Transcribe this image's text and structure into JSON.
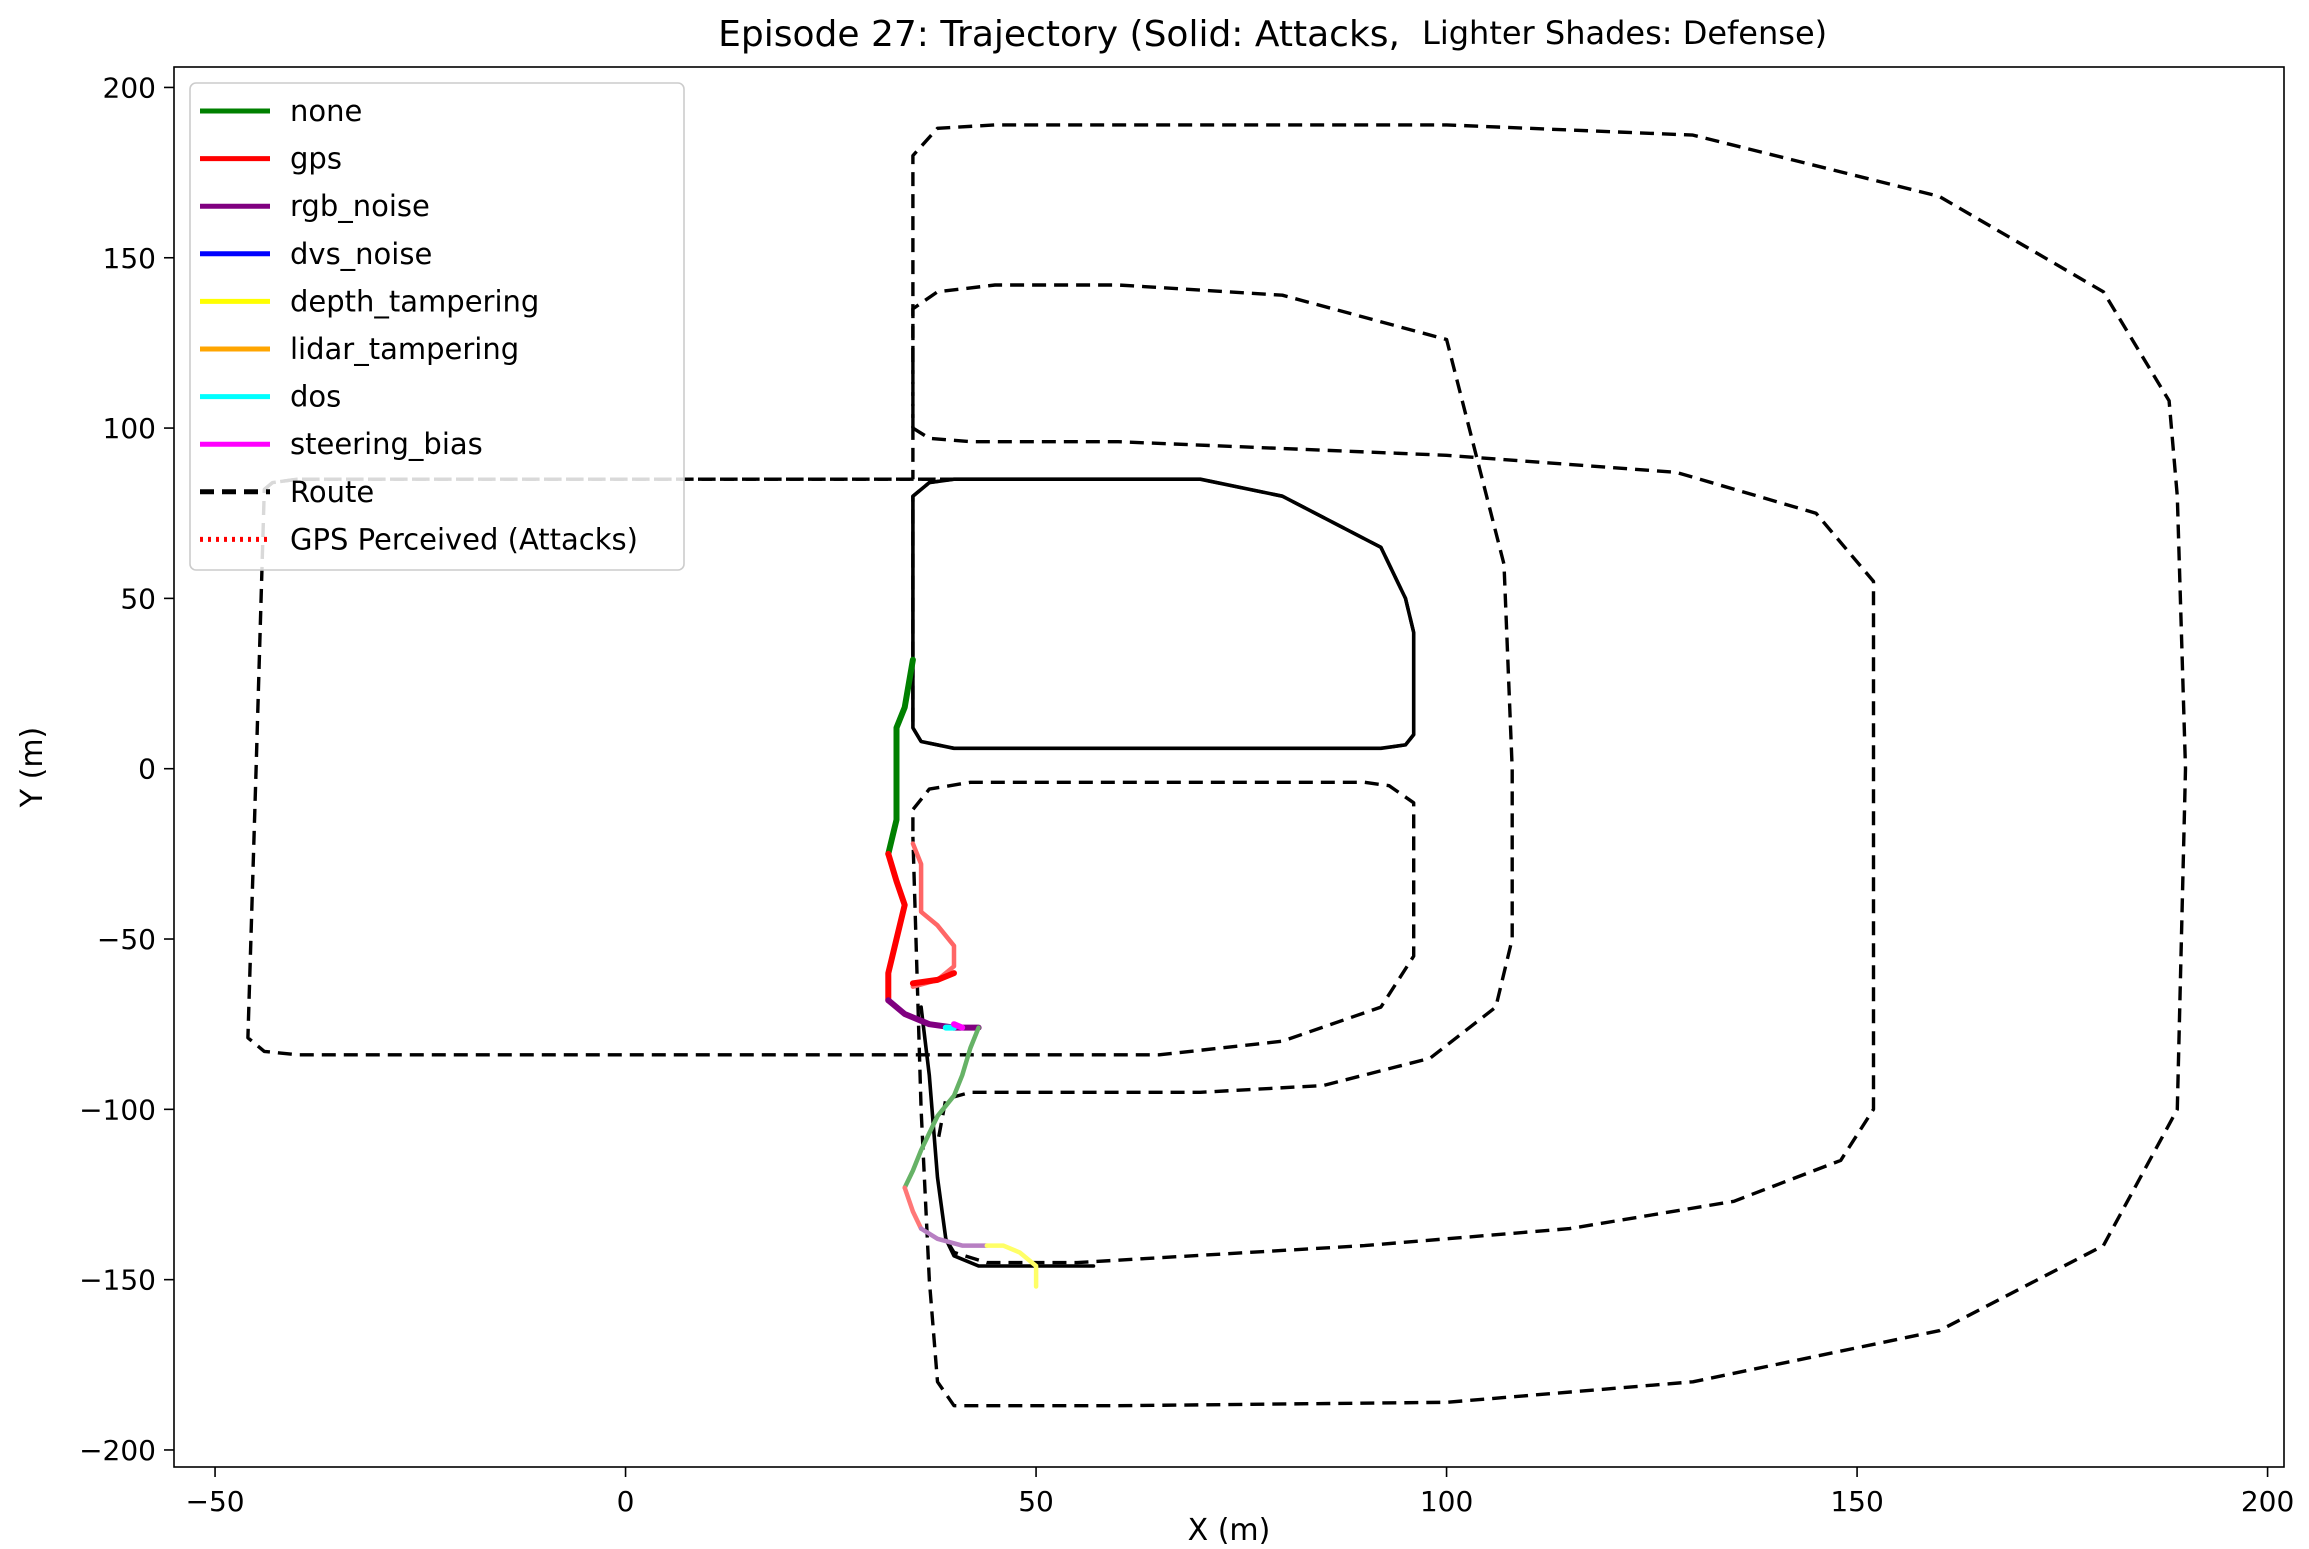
{
  "chart_data": {
    "type": "line",
    "title": "Episode 27: Trajectory (Solid: Attacks,",
    "title_suffix": "Lighter Shades: Defense)",
    "xlabel": "X (m)",
    "ylabel": "Y (m)",
    "xlim": [
      -55,
      202
    ],
    "ylim": [
      -205,
      206
    ],
    "xticks": [
      -50,
      0,
      50,
      100,
      150,
      200
    ],
    "yticks": [
      -200,
      -150,
      -100,
      -50,
      0,
      50,
      100,
      150,
      200
    ],
    "xtick_labels": [
      "−50",
      "0",
      "50",
      "100",
      "150",
      "200"
    ],
    "ytick_labels": [
      "−200",
      "−150",
      "−100",
      "−50",
      "0",
      "50",
      "100",
      "150",
      "200"
    ],
    "grid": false,
    "legend_position": "top-left",
    "legend": [
      {
        "label": "none",
        "color": "#008000",
        "style": "solid"
      },
      {
        "label": "gps",
        "color": "#ff0000",
        "style": "solid"
      },
      {
        "label": "rgb_noise",
        "color": "#800080",
        "style": "solid"
      },
      {
        "label": "dvs_noise",
        "color": "#0000ff",
        "style": "solid"
      },
      {
        "label": "depth_tampering",
        "color": "#ffff00",
        "style": "solid"
      },
      {
        "label": "lidar_tampering",
        "color": "#ffa500",
        "style": "solid"
      },
      {
        "label": "dos",
        "color": "#00ffff",
        "style": "solid"
      },
      {
        "label": "steering_bias",
        "color": "#ff00ff",
        "style": "solid"
      },
      {
        "label": "Route",
        "color": "#000000",
        "style": "dashed"
      },
      {
        "label": "GPS Perceived (Attacks)",
        "color": "#ff0000",
        "style": "dotted"
      }
    ],
    "routes": [
      {
        "name": "route-1",
        "style": "dashed",
        "points": [
          [
            -44,
            82
          ],
          [
            -43,
            84
          ],
          [
            -40,
            85
          ],
          [
            20,
            85
          ],
          [
            35,
            85
          ],
          [
            70,
            85
          ],
          [
            80,
            80
          ],
          [
            92,
            65
          ],
          [
            95,
            50
          ],
          [
            96,
            40
          ],
          [
            96,
            10
          ],
          [
            95,
            7
          ],
          [
            92,
            6
          ],
          [
            75,
            6
          ],
          [
            40,
            6
          ],
          [
            36,
            8
          ],
          [
            35,
            12
          ],
          [
            35,
            80
          ],
          [
            37,
            84
          ],
          [
            40,
            85
          ]
        ]
      },
      {
        "name": "route-2",
        "style": "dashed",
        "points": [
          [
            40,
            85
          ],
          [
            35,
            85
          ],
          [
            -40,
            85
          ],
          [
            -43,
            84
          ],
          [
            -44,
            82
          ],
          [
            -45,
            0
          ],
          [
            -46,
            -79
          ],
          [
            -44,
            -83
          ],
          [
            -40,
            -84
          ],
          [
            50,
            -84
          ],
          [
            65,
            -84
          ],
          [
            80,
            -80
          ],
          [
            92,
            -70
          ],
          [
            96,
            -55
          ],
          [
            96,
            -10
          ],
          [
            93,
            -5
          ],
          [
            90,
            -4
          ],
          [
            42,
            -4
          ],
          [
            37,
            -6
          ],
          [
            35,
            -12
          ],
          [
            35,
            -20
          ]
        ]
      },
      {
        "name": "route-3",
        "style": "dashed",
        "points": [
          [
            35,
            100
          ],
          [
            35,
            180
          ],
          [
            38,
            188
          ],
          [
            45,
            189
          ],
          [
            100,
            189
          ],
          [
            130,
            186
          ],
          [
            160,
            168
          ],
          [
            180,
            140
          ],
          [
            188,
            108
          ],
          [
            189,
            80
          ],
          [
            190,
            0
          ],
          [
            189,
            -100
          ],
          [
            180,
            -140
          ],
          [
            160,
            -165
          ],
          [
            130,
            -180
          ],
          [
            100,
            -186
          ],
          [
            60,
            -187
          ],
          [
            40,
            -187
          ],
          [
            38,
            -180
          ],
          [
            37,
            -150
          ],
          [
            36,
            -100
          ],
          [
            35,
            -20
          ]
        ]
      },
      {
        "name": "route-4",
        "style": "dashed",
        "points": [
          [
            35,
            100
          ],
          [
            37,
            97
          ],
          [
            42,
            96
          ],
          [
            60,
            96
          ],
          [
            100,
            92
          ],
          [
            128,
            87
          ],
          [
            145,
            75
          ],
          [
            152,
            55
          ],
          [
            152,
            0
          ],
          [
            152,
            -100
          ],
          [
            148,
            -115
          ],
          [
            135,
            -127
          ],
          [
            115,
            -135
          ],
          [
            90,
            -140
          ],
          [
            55,
            -145
          ],
          [
            44,
            -145
          ],
          [
            40,
            -142
          ],
          [
            39,
            -138
          ]
        ]
      },
      {
        "name": "route-5",
        "style": "dashed",
        "points": [
          [
            35,
            120
          ],
          [
            35,
            135
          ],
          [
            38,
            140
          ],
          [
            45,
            142
          ],
          [
            60,
            142
          ],
          [
            80,
            139
          ],
          [
            100,
            126
          ],
          [
            107,
            60
          ],
          [
            108,
            0
          ],
          [
            108,
            -50
          ],
          [
            106,
            -70
          ],
          [
            98,
            -85
          ],
          [
            85,
            -93
          ],
          [
            70,
            -95
          ],
          [
            42,
            -95
          ],
          [
            39,
            -97
          ],
          [
            38,
            -110
          ]
        ]
      },
      {
        "name": "route-6",
        "style": "dashed",
        "points": [
          [
            35,
            120
          ],
          [
            35,
            100
          ],
          [
            35,
            85
          ]
        ]
      }
    ],
    "route_solid": {
      "name": "route-solid",
      "points": [
        [
          40,
          85
        ],
        [
          70,
          85
        ],
        [
          80,
          80
        ],
        [
          92,
          65
        ],
        [
          95,
          50
        ],
        [
          96,
          40
        ],
        [
          96,
          10
        ],
        [
          95,
          7
        ],
        [
          92,
          6
        ],
        [
          75,
          6
        ],
        [
          40,
          6
        ],
        [
          36,
          8
        ],
        [
          35,
          12
        ],
        [
          35,
          80
        ],
        [
          37,
          84
        ],
        [
          40,
          85
        ]
      ]
    },
    "route_solid_tail": {
      "name": "route-solid-tail",
      "points": [
        [
          36,
          -70
        ],
        [
          37,
          -90
        ],
        [
          38,
          -120
        ],
        [
          39,
          -138
        ],
        [
          40,
          -143
        ],
        [
          43,
          -146
        ],
        [
          55,
          -146
        ],
        [
          57,
          -146
        ]
      ]
    },
    "trajectories": [
      {
        "name": "none",
        "shade": "attack",
        "color": "#008000",
        "points": [
          [
            35,
            32
          ],
          [
            34,
            18
          ],
          [
            33,
            12
          ],
          [
            33,
            0
          ],
          [
            33,
            -15
          ],
          [
            32,
            -25
          ]
        ]
      },
      {
        "name": "gps",
        "shade": "attack",
        "color": "#ff0000",
        "points": [
          [
            32,
            -25
          ],
          [
            33,
            -33
          ],
          [
            34,
            -40
          ],
          [
            33,
            -50
          ],
          [
            32,
            -60
          ],
          [
            32,
            -68
          ]
        ]
      },
      {
        "name": "gps-perceived",
        "shade": "defense",
        "color": "#ff6666",
        "points": [
          [
            35,
            -22
          ],
          [
            36,
            -28
          ],
          [
            36,
            -35
          ],
          [
            36,
            -42
          ],
          [
            38,
            -46
          ],
          [
            40,
            -52
          ],
          [
            40,
            -58
          ],
          [
            38,
            -62
          ],
          [
            35,
            -64
          ]
        ]
      },
      {
        "name": "gps-perceived-tail",
        "shade": "attack",
        "color": "#ff0000",
        "points": [
          [
            35,
            -63
          ],
          [
            38,
            -62
          ],
          [
            40,
            -60
          ]
        ]
      },
      {
        "name": "rgb_noise",
        "shade": "attack",
        "color": "#800080",
        "points": [
          [
            32,
            -68
          ],
          [
            34,
            -72
          ],
          [
            37,
            -75
          ],
          [
            40,
            -76
          ],
          [
            43,
            -76
          ]
        ]
      },
      {
        "name": "dos",
        "shade": "attack",
        "color": "#00ffff",
        "points": [
          [
            39,
            -76
          ],
          [
            40,
            -76
          ]
        ]
      },
      {
        "name": "steering_bias",
        "shade": "attack",
        "color": "#ff00ff",
        "points": [
          [
            40,
            -75
          ],
          [
            41,
            -76
          ]
        ]
      },
      {
        "name": "none-defense",
        "shade": "defense",
        "color": "#66b266",
        "points": [
          [
            43,
            -76
          ],
          [
            42,
            -82
          ],
          [
            41,
            -90
          ],
          [
            40,
            -96
          ],
          [
            38,
            -102
          ],
          [
            36,
            -112
          ],
          [
            35,
            -118
          ],
          [
            34,
            -123
          ]
        ]
      },
      {
        "name": "gps-defense",
        "shade": "defense",
        "color": "#ff7777",
        "points": [
          [
            34,
            -123
          ],
          [
            35,
            -130
          ],
          [
            36,
            -135
          ]
        ]
      },
      {
        "name": "rgb-defense",
        "shade": "defense",
        "color": "#b77fc2",
        "points": [
          [
            36,
            -135
          ],
          [
            38,
            -138
          ],
          [
            41,
            -140
          ],
          [
            44,
            -140
          ]
        ]
      },
      {
        "name": "depth-defense",
        "shade": "defense",
        "color": "#ffff66",
        "points": [
          [
            44,
            -140
          ],
          [
            46,
            -140
          ],
          [
            48,
            -142
          ],
          [
            50,
            -146
          ],
          [
            50,
            -152
          ]
        ]
      }
    ]
  }
}
